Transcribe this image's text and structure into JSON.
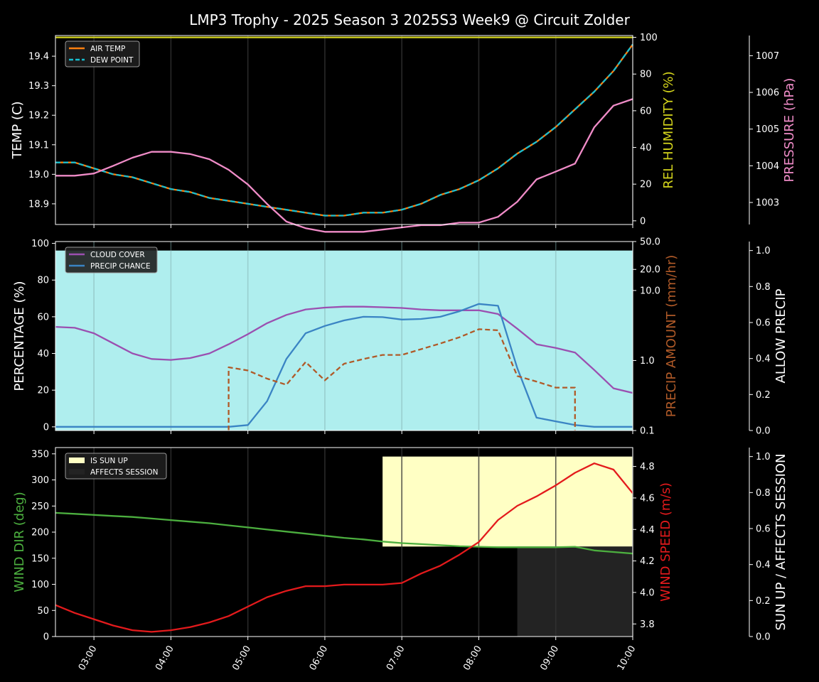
{
  "title": "LMP3 Trophy - 2025 Season 3 2025S3 Week9 @ Circuit Zolder",
  "colors": {
    "background": "#000000",
    "axis": "#ffffff",
    "air_temp": "#ff7f0e",
    "dew_point": "#17becf",
    "humidity": "#d4d41c",
    "pressure": "#f08cc8",
    "cloud": "#9b4fb0",
    "precip_chance": "#3a84c4",
    "precip_amount": "#b05a28",
    "allow_precip_fill": "#afeeee",
    "wind_dir": "#4caf3f",
    "wind_speed": "#e31a1c",
    "sun_up": "#ffffc4",
    "affects_session": "#232323"
  },
  "x_axis": {
    "range": [
      2.5,
      10.0
    ],
    "ticks": [
      3,
      4,
      5,
      6,
      7,
      8,
      9,
      10
    ],
    "tick_labels": [
      "03:00",
      "04:00",
      "05:00",
      "06:00",
      "07:00",
      "08:00",
      "09:00",
      "10:00"
    ]
  },
  "chart_data": [
    {
      "type": "line",
      "panel": "temperature",
      "x": [
        2.5,
        2.75,
        3.0,
        3.25,
        3.5,
        3.75,
        4.0,
        4.25,
        4.5,
        4.75,
        5.0,
        5.25,
        5.5,
        5.75,
        6.0,
        6.25,
        6.5,
        6.75,
        7.0,
        7.25,
        7.5,
        7.75,
        8.0,
        8.25,
        8.5,
        8.75,
        9.0,
        9.25,
        9.5,
        9.75,
        10.0
      ],
      "left_axis": {
        "label": "TEMP (C)",
        "range": [
          18.83,
          19.47
        ],
        "ticks": [
          18.9,
          19.0,
          19.1,
          19.2,
          19.3,
          19.4
        ],
        "tick_labels": [
          "18.9",
          "19.0",
          "19.1",
          "19.2",
          "19.3",
          "19.4"
        ]
      },
      "right_axis": {
        "label": "REL HUMIDITY (%)",
        "range": [
          -2,
          101
        ],
        "ticks": [
          0,
          20,
          40,
          60,
          80,
          100
        ],
        "tick_labels": [
          "0",
          "20",
          "40",
          "60",
          "80",
          "100"
        ]
      },
      "far_axis": {
        "label": "PRESSURE (hPa)",
        "range": [
          1002.4,
          1007.55
        ],
        "ticks": [
          1003,
          1004,
          1005,
          1006,
          1007
        ],
        "tick_labels": [
          "1003",
          "1004",
          "1005",
          "1006",
          "1007"
        ]
      },
      "legend": {
        "position": "top-left",
        "entries": [
          "AIR TEMP",
          "DEW POINT"
        ]
      },
      "series": [
        {
          "name": "AIR TEMP",
          "axis": "left",
          "style": "solid",
          "values": [
            19.04,
            19.04,
            19.02,
            19.0,
            18.99,
            18.97,
            18.95,
            18.94,
            18.92,
            18.91,
            18.9,
            18.89,
            18.88,
            18.87,
            18.86,
            18.86,
            18.87,
            18.87,
            18.88,
            18.9,
            18.93,
            18.95,
            18.98,
            19.02,
            19.07,
            19.11,
            19.16,
            19.22,
            19.28,
            19.35,
            19.44
          ]
        },
        {
          "name": "DEW POINT",
          "axis": "left",
          "style": "dashed",
          "values": [
            19.04,
            19.04,
            19.02,
            19.0,
            18.99,
            18.97,
            18.95,
            18.94,
            18.92,
            18.91,
            18.9,
            18.89,
            18.88,
            18.87,
            18.86,
            18.86,
            18.87,
            18.87,
            18.88,
            18.9,
            18.93,
            18.95,
            18.98,
            19.02,
            19.07,
            19.11,
            19.16,
            19.22,
            19.28,
            19.35,
            19.44
          ]
        },
        {
          "axis": "right",
          "style": "solid",
          "color_key": "humidity",
          "values": [
            100,
            100,
            100,
            100,
            100,
            100,
            100,
            100,
            100,
            100,
            100,
            100,
            100,
            100,
            100,
            100,
            100,
            100,
            100,
            100,
            100,
            100,
            100,
            100,
            100,
            100,
            100,
            100,
            100,
            100,
            100
          ]
        },
        {
          "axis": "far",
          "style": "solid",
          "color_key": "pressure",
          "values": [
            1003.73,
            1003.73,
            1003.79,
            1004.0,
            1004.22,
            1004.38,
            1004.38,
            1004.32,
            1004.18,
            1003.89,
            1003.49,
            1002.96,
            1002.48,
            1002.3,
            1002.2,
            1002.2,
            1002.2,
            1002.26,
            1002.32,
            1002.38,
            1002.38,
            1002.45,
            1002.45,
            1002.61,
            1003.02,
            1003.63,
            1003.84,
            1004.06,
            1005.05,
            1005.64,
            1005.82
          ]
        }
      ]
    },
    {
      "type": "line",
      "panel": "precipitation",
      "x": [
        2.5,
        2.75,
        3.0,
        3.25,
        3.5,
        3.75,
        4.0,
        4.25,
        4.5,
        4.75,
        5.0,
        5.25,
        5.5,
        5.75,
        6.0,
        6.25,
        6.5,
        6.75,
        7.0,
        7.25,
        7.5,
        7.75,
        8.0,
        8.25,
        8.5,
        8.75,
        9.0,
        9.25,
        9.5,
        9.75,
        10.0
      ],
      "left_axis": {
        "label": "PERCENTAGE (%)",
        "range": [
          -2,
          101
        ],
        "ticks": [
          0,
          20,
          40,
          60,
          80,
          100
        ],
        "tick_labels": [
          "0",
          "20",
          "40",
          "60",
          "80",
          "100"
        ]
      },
      "right_axis": {
        "label": "PRECIP AMOUNT (mm/hr)",
        "scale": "log",
        "range": [
          0.1,
          50
        ],
        "ticks": [
          0.1,
          1.0,
          10.0,
          20.0,
          50.0
        ],
        "tick_labels": [
          "0.1",
          "1.0",
          "10.0",
          "20.0",
          "50.0"
        ]
      },
      "far_axis": {
        "label": "ALLOW PRECIP",
        "range": [
          0,
          1.05
        ],
        "ticks": [
          0,
          0.2,
          0.4,
          0.6,
          0.8,
          1.0
        ],
        "tick_labels": [
          "0.0",
          "0.2",
          "0.4",
          "0.6",
          "0.8",
          "1.0"
        ]
      },
      "legend": {
        "position": "top-left",
        "entries": [
          "CLOUD COVER",
          "PRECIP CHANCE"
        ]
      },
      "series": [
        {
          "name": "CLOUD COVER",
          "axis": "left",
          "style": "solid",
          "values": [
            54.5,
            54.0,
            51.0,
            45.5,
            40.0,
            37.0,
            36.5,
            37.5,
            40.0,
            45.0,
            50.5,
            56.5,
            61.0,
            64.0,
            65.0,
            65.5,
            65.5,
            65.2,
            64.8,
            64.0,
            63.5,
            63.5,
            63.5,
            61.5,
            53.5,
            45.0,
            43.0,
            40.5,
            31.0,
            21.0,
            18.5
          ]
        },
        {
          "name": "PRECIP CHANCE",
          "axis": "left",
          "style": "solid",
          "values": [
            0,
            0,
            0,
            0,
            0,
            0,
            0,
            0,
            0,
            0,
            1,
            14,
            37,
            51,
            55,
            58,
            60,
            59.8,
            58.5,
            58.8,
            60,
            63,
            67,
            66,
            32,
            5,
            3,
            1,
            0,
            0,
            0
          ]
        },
        {
          "axis": "right",
          "style": "dashed",
          "color_key": "precip_amount",
          "x": [
            4.75,
            4.75,
            5.0,
            5.25,
            5.5,
            5.75,
            6.0,
            6.25,
            6.5,
            6.75,
            7.0,
            7.25,
            7.5,
            7.75,
            8.0,
            8.25,
            8.5,
            8.75,
            9.0,
            9.25,
            9.25
          ],
          "values": [
            0.1,
            0.8,
            0.72,
            0.55,
            0.45,
            0.95,
            0.52,
            0.9,
            1.05,
            1.2,
            1.2,
            1.45,
            1.75,
            2.15,
            2.8,
            2.7,
            0.6,
            0.5,
            0.41,
            0.41,
            0.1
          ]
        },
        {
          "axis": "far",
          "style": "fill",
          "color_key": "allow_precip_fill",
          "values": [
            1,
            1,
            1,
            1,
            1,
            1,
            1,
            1,
            1,
            1,
            1,
            1,
            1,
            1,
            1,
            1,
            1,
            1,
            1,
            1,
            1,
            1,
            1,
            1,
            1,
            1,
            1,
            1,
            1,
            1,
            1
          ]
        }
      ]
    },
    {
      "type": "line",
      "panel": "wind",
      "x": [
        2.5,
        2.75,
        3.0,
        3.25,
        3.5,
        3.75,
        4.0,
        4.25,
        4.5,
        4.75,
        5.0,
        5.25,
        5.5,
        5.75,
        6.0,
        6.25,
        6.5,
        6.75,
        7.0,
        7.25,
        7.5,
        7.75,
        8.0,
        8.25,
        8.5,
        8.75,
        9.0,
        9.25,
        9.5,
        9.75,
        10.0
      ],
      "left_axis": {
        "label": "WIND DIR (deg)",
        "range": [
          0,
          362
        ],
        "ticks": [
          0,
          50,
          100,
          150,
          200,
          250,
          300,
          350
        ],
        "tick_labels": [
          "0",
          "50",
          "100",
          "150",
          "200",
          "250",
          "300",
          "350"
        ]
      },
      "right_axis": {
        "label": "WIND SPEED (m/s)",
        "range": [
          3.72,
          4.92
        ],
        "ticks": [
          3.8,
          4.0,
          4.2,
          4.4,
          4.6,
          4.8
        ],
        "tick_labels": [
          "3.8",
          "4.0",
          "4.2",
          "4.4",
          "4.6",
          "4.8"
        ]
      },
      "far_axis": {
        "label": "SUN UP / AFFECTS SESSION",
        "range": [
          0,
          1.05
        ],
        "ticks": [
          0,
          0.2,
          0.4,
          0.6,
          0.8,
          1.0
        ],
        "tick_labels": [
          "0.0",
          "0.2",
          "0.4",
          "0.6",
          "0.8",
          "1.0"
        ]
      },
      "legend": {
        "position": "top-left",
        "entries": [
          "IS SUN UP",
          "AFFECTS SESSION"
        ]
      },
      "sun_up": {
        "from": 6.75,
        "to": 10.0,
        "value": 1.0
      },
      "affects_session": {
        "from": 8.5,
        "to": 10.0,
        "value": 0.5
      },
      "series": [
        {
          "axis": "left",
          "style": "solid",
          "color_key": "wind_dir",
          "values": [
            237,
            235,
            233,
            231,
            229,
            226,
            223,
            220,
            217,
            213,
            209,
            205,
            201,
            197,
            193,
            189,
            186,
            182,
            179,
            177,
            175,
            173,
            172,
            171,
            171,
            171,
            171,
            172,
            165,
            162,
            159
          ]
        },
        {
          "axis": "right",
          "style": "solid",
          "color_key": "wind_speed",
          "values": [
            3.92,
            3.87,
            3.83,
            3.79,
            3.76,
            3.75,
            3.76,
            3.78,
            3.81,
            3.85,
            3.91,
            3.97,
            4.01,
            4.04,
            4.04,
            4.05,
            4.05,
            4.05,
            4.06,
            4.12,
            4.17,
            4.24,
            4.32,
            4.46,
            4.55,
            4.61,
            4.68,
            4.76,
            4.82,
            4.78,
            4.63
          ]
        }
      ]
    }
  ]
}
